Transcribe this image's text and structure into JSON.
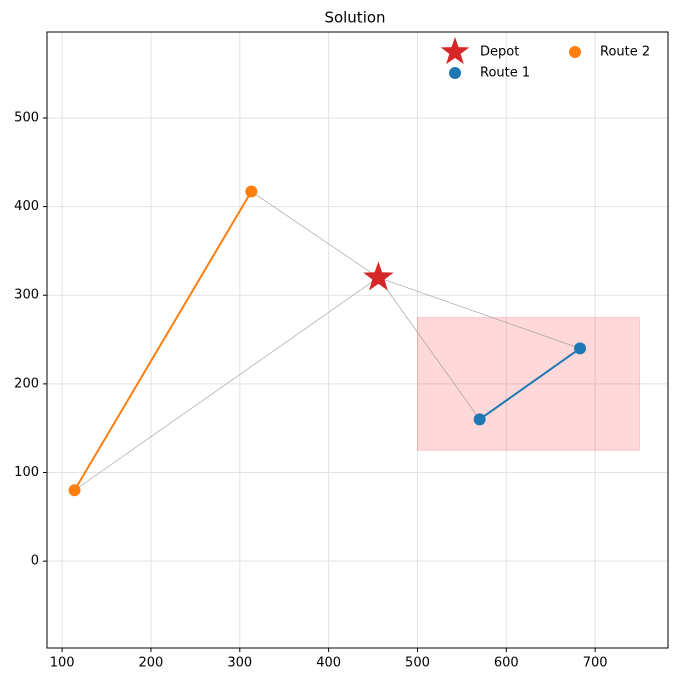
{
  "chart_data": {
    "type": "scatter",
    "title": "Solution",
    "xlim": [
      83,
      782
    ],
    "ylim": [
      -98,
      597
    ],
    "xticks": [
      100,
      200,
      300,
      400,
      500,
      600,
      700
    ],
    "yticks": [
      0,
      100,
      200,
      300,
      400,
      500
    ],
    "grid": true,
    "legend": "upper right",
    "legend_columns": 2,
    "depot": {
      "name": "Depot",
      "x": 456,
      "y": 320,
      "color": "#d62728"
    },
    "series": [
      {
        "name": "Route 1",
        "color": "#1f77b4",
        "x": [
          570,
          683
        ],
        "y": [
          160,
          240
        ]
      },
      {
        "name": "Route 2",
        "color": "#ff7f0e",
        "x": [
          313,
          114
        ],
        "y": [
          417,
          80
        ]
      }
    ],
    "regions": [
      {
        "x": [
          500,
          750
        ],
        "y": [
          125,
          275
        ],
        "color": "#ff0000"
      }
    ]
  }
}
